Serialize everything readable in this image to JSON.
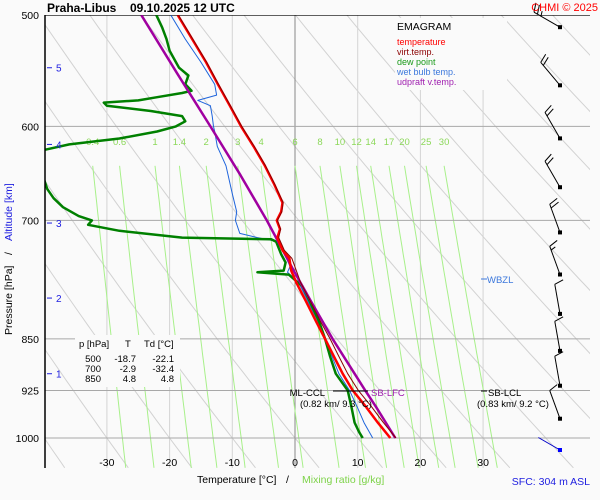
{
  "chart_data": {
    "type": "line",
    "diagram_type": "EMAGRAM",
    "station": "Praha-Libus",
    "datetime": "09.10.2025 12 UTC",
    "copyright": "CHMI © 2025",
    "xlabel": "Temperature [°C]",
    "xlabel_sep": "/",
    "xlabel2": "Mixing ratio [g/kg]",
    "ylabel": "Pressure [hPa]",
    "ylabel_sep": "/",
    "ylabel2": "Altitude [km]",
    "xlim": [
      -40,
      47
    ],
    "ylim_hpa": [
      500,
      1050
    ],
    "x_ticks": [
      -30,
      -20,
      -10,
      0,
      10,
      20,
      30
    ],
    "x_tick_labels": [
      "-30",
      "-20",
      "-10",
      "0",
      "10",
      "20",
      "30"
    ],
    "p_ticks": [
      500,
      600,
      700,
      850,
      925,
      1000
    ],
    "p_tick_labels": [
      "500",
      "600",
      "700",
      "850",
      "925",
      "1000"
    ],
    "altitude_ticks": [
      {
        "km": 1,
        "p": 900
      },
      {
        "km": 2,
        "p": 795
      },
      {
        "km": 3,
        "p": 703
      },
      {
        "km": 4,
        "p": 618
      },
      {
        "km": 5,
        "p": 545
      }
    ],
    "mixing_ratio_labels": [
      "0.4",
      "0.6",
      "1",
      "1.4",
      "2",
      "3",
      "4",
      "6",
      "8",
      "10",
      "12",
      "14",
      "17",
      "20",
      "25",
      "30"
    ],
    "mixing_ratio_values": [
      0.4,
      0.6,
      1,
      1.4,
      2,
      3,
      4,
      6,
      8,
      10,
      12,
      14,
      17,
      20,
      25,
      30
    ],
    "legend": {
      "title": "EMAGRAM",
      "placement": "top-right",
      "entries": [
        {
          "label": "temperature",
          "color": "#ff0000"
        },
        {
          "label": "virt.temp.",
          "color": "#8b0000"
        },
        {
          "label": "dew point",
          "color": "#008000"
        },
        {
          "label": "wet bulb temp.",
          "color": "#1e64dc"
        },
        {
          "label": "udpraft v.temp.",
          "color": "#a000a0"
        }
      ]
    },
    "series": [
      {
        "name": "temperature",
        "color": "#ff0000",
        "points": [
          [
            1000,
            15.2
          ],
          [
            975,
            13.2
          ],
          [
            950,
            11.3
          ],
          [
            925,
            9.2
          ],
          [
            900,
            7.6
          ],
          [
            875,
            6.2
          ],
          [
            850,
            4.8
          ],
          [
            825,
            3.3
          ],
          [
            800,
            1.8
          ],
          [
            775,
            0.2
          ],
          [
            760,
            -0.6
          ],
          [
            745,
            -0.9
          ],
          [
            735,
            -2.0
          ],
          [
            720,
            -2.8
          ],
          [
            710,
            -2.4
          ],
          [
            700,
            -2.9
          ],
          [
            690,
            -2.2
          ],
          [
            680,
            -2.0
          ],
          [
            660,
            -3.3
          ],
          [
            640,
            -4.8
          ],
          [
            620,
            -6.6
          ],
          [
            600,
            -8.6
          ],
          [
            580,
            -10.4
          ],
          [
            560,
            -12.3
          ],
          [
            540,
            -14.2
          ],
          [
            520,
            -16.4
          ],
          [
            500,
            -18.7
          ]
        ]
      },
      {
        "name": "virt.temp.",
        "color": "#8b0000",
        "points": [
          [
            1000,
            16.1
          ],
          [
            975,
            14.1
          ],
          [
            950,
            12.2
          ],
          [
            925,
            10.1
          ],
          [
            900,
            8.4
          ],
          [
            875,
            7.0
          ],
          [
            850,
            5.6
          ],
          [
            825,
            4.0
          ],
          [
            800,
            2.5
          ],
          [
            775,
            0.9
          ],
          [
            760,
            0.2
          ],
          [
            745,
            -0.5
          ],
          [
            735,
            -1.7
          ],
          [
            720,
            -2.6
          ],
          [
            710,
            -2.3
          ],
          [
            700,
            -2.8
          ],
          [
            690,
            -2.1
          ],
          [
            680,
            -1.9
          ],
          [
            660,
            -3.2
          ],
          [
            640,
            -4.7
          ],
          [
            620,
            -6.5
          ],
          [
            600,
            -8.5
          ],
          [
            580,
            -10.3
          ],
          [
            560,
            -12.2
          ],
          [
            540,
            -14.1
          ],
          [
            520,
            -16.3
          ],
          [
            500,
            -18.6
          ]
        ]
      },
      {
        "name": "dew point",
        "color": "#008000",
        "points": [
          [
            1000,
            10.8
          ],
          [
            990,
            10.2
          ],
          [
            975,
            9.5
          ],
          [
            950,
            9.0
          ],
          [
            925,
            8.4
          ],
          [
            900,
            6.5
          ],
          [
            875,
            5.6
          ],
          [
            850,
            4.8
          ],
          [
            825,
            3.8
          ],
          [
            800,
            2.4
          ],
          [
            780,
            1.2
          ],
          [
            765,
            -1.0
          ],
          [
            762,
            -6.0
          ],
          [
            760,
            -1.8
          ],
          [
            750,
            -1.5
          ],
          [
            740,
            -2.2
          ],
          [
            725,
            -3.0
          ],
          [
            722,
            -3.8
          ],
          [
            720,
            -18.0
          ],
          [
            712,
            -28.0
          ],
          [
            705,
            -33.0
          ],
          [
            700,
            -32.4
          ],
          [
            695,
            -34.5
          ],
          [
            685,
            -37.0
          ],
          [
            675,
            -38.5
          ],
          [
            665,
            -39.5
          ],
          [
            655,
            -40.0
          ],
          [
            645,
            -41.0
          ],
          [
            625,
            -41.0
          ],
          [
            618,
            -36.0
          ],
          [
            612,
            -28.0
          ],
          [
            605,
            -22.0
          ],
          [
            600,
            -19.0
          ],
          [
            595,
            -17.5
          ],
          [
            590,
            -18.0
          ],
          [
            585,
            -23.0
          ],
          [
            580,
            -30.0
          ],
          [
            577,
            -30.5
          ],
          [
            575,
            -25.0
          ],
          [
            572,
            -22.0
          ],
          [
            568,
            -18.0
          ],
          [
            566,
            -16.5
          ],
          [
            560,
            -17.5
          ],
          [
            552,
            -17.0
          ],
          [
            545,
            -18.5
          ],
          [
            540,
            -19.0
          ],
          [
            530,
            -20.0
          ],
          [
            520,
            -20.5
          ],
          [
            510,
            -21.2
          ],
          [
            500,
            -22.1
          ]
        ]
      },
      {
        "name": "wet bulb temp.",
        "color": "#1e64dc",
        "points": [
          [
            1000,
            12.4
          ],
          [
            975,
            11.0
          ],
          [
            950,
            9.9
          ],
          [
            925,
            8.7
          ],
          [
            900,
            7.0
          ],
          [
            875,
            5.9
          ],
          [
            850,
            4.8
          ],
          [
            825,
            3.6
          ],
          [
            800,
            2.1
          ],
          [
            775,
            0.6
          ],
          [
            762,
            -1.2
          ],
          [
            755,
            -0.8
          ],
          [
            740,
            -1.6
          ],
          [
            725,
            -2.6
          ],
          [
            720,
            -6.0
          ],
          [
            715,
            -8.8
          ],
          [
            700,
            -9.5
          ],
          [
            690,
            -9.3
          ],
          [
            670,
            -10.0
          ],
          [
            640,
            -11.0
          ],
          [
            620,
            -12.4
          ],
          [
            605,
            -12.8
          ],
          [
            600,
            -13.0
          ],
          [
            590,
            -13.2
          ],
          [
            580,
            -13.5
          ],
          [
            575,
            -15.5
          ],
          [
            570,
            -12.5
          ],
          [
            560,
            -12.8
          ],
          [
            540,
            -15.0
          ],
          [
            520,
            -17.5
          ],
          [
            500,
            -19.8
          ]
        ]
      },
      {
        "name": "udpraft v.temp.",
        "color": "#a000a0",
        "points": [
          [
            1000,
            16.0
          ],
          [
            950,
            12.9
          ],
          [
            925,
            11.2
          ],
          [
            900,
            9.5
          ],
          [
            850,
            6.0
          ],
          [
            800,
            2.6
          ],
          [
            760,
            -0.2
          ],
          [
            700,
            -4.5
          ],
          [
            650,
            -8.7
          ],
          [
            600,
            -13.5
          ],
          [
            550,
            -18.8
          ],
          [
            500,
            -24.5
          ]
        ]
      }
    ],
    "annotations": [
      {
        "label": "ML-CCL",
        "detail": "(0.82 km/ 9.3 °C)",
        "p": 925
      },
      {
        "label": "SB-LFC",
        "p": 925
      },
      {
        "label": "SB-LCL",
        "detail": "(0.83 km/ 9.2 °C)",
        "p": 925
      },
      {
        "label": "WBZL",
        "p": 775
      }
    ],
    "table": {
      "headers": [
        "p [hPa]",
        "T",
        "Td [°C]"
      ],
      "rows": [
        [
          "500",
          "-18.7",
          "-22.1"
        ],
        [
          "700",
          "-2.9",
          "-32.4"
        ],
        [
          "850",
          "4.8",
          "4.8"
        ]
      ]
    },
    "wind_barbs": [
      {
        "p": 500,
        "dir": 300,
        "kt": 25
      },
      {
        "p": 550,
        "dir": 320,
        "kt": 20
      },
      {
        "p": 600,
        "dir": 330,
        "kt": 20
      },
      {
        "p": 650,
        "dir": 330,
        "kt": 20
      },
      {
        "p": 700,
        "dir": 340,
        "kt": 20
      },
      {
        "p": 750,
        "dir": 340,
        "kt": 15
      },
      {
        "p": 800,
        "dir": 350,
        "kt": 10
      },
      {
        "p": 850,
        "dir": 350,
        "kt": 10
      },
      {
        "p": 900,
        "dir": 350,
        "kt": 10
      },
      {
        "p": 950,
        "dir": 340,
        "kt": 10
      },
      {
        "p": 1000,
        "dir": 300,
        "kt": 3
      }
    ],
    "surface": "SFC: 304 m ASL",
    "grid": true
  }
}
